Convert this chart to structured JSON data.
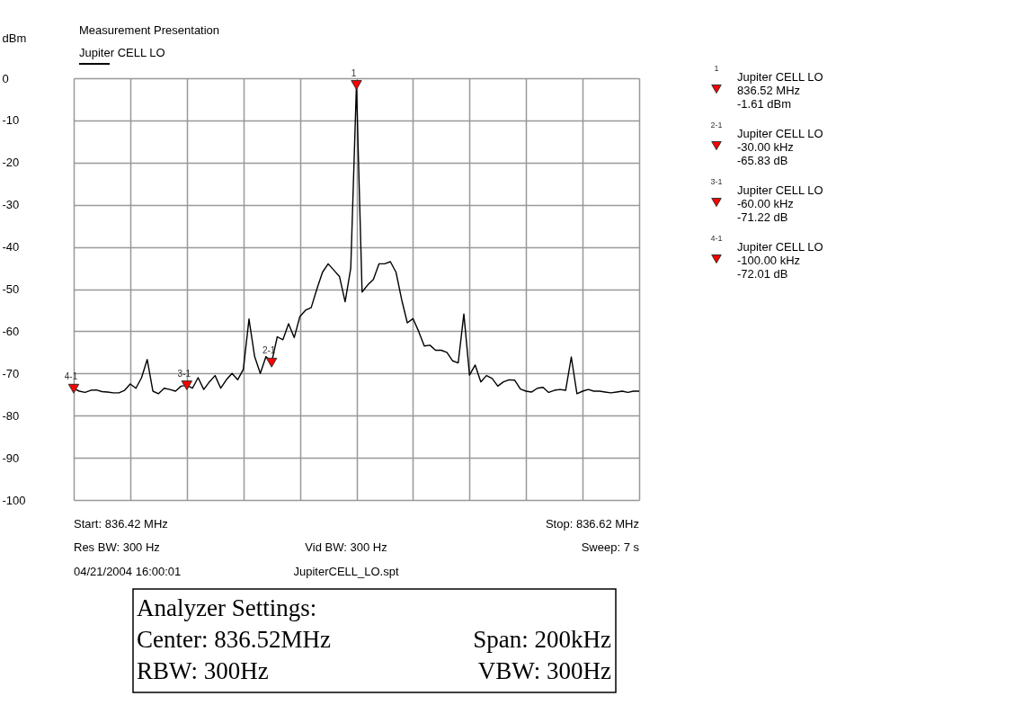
{
  "chart_data": {
    "type": "line",
    "title": "Measurement Presentation",
    "ylabel": "dBm",
    "categories": [
      null,
      null,
      null,
      null,
      null,
      null,
      null,
      null,
      null,
      null,
      null,
      null,
      null,
      null,
      null,
      null,
      null,
      null,
      null,
      null,
      null,
      null,
      null,
      null,
      null,
      null,
      null,
      null,
      null,
      null,
      null,
      null,
      null,
      null,
      null,
      null,
      null,
      null,
      null,
      null,
      null,
      null,
      null,
      null,
      null,
      null,
      null,
      null,
      null,
      null,
      null,
      null,
      null,
      null,
      null,
      null,
      null,
      null,
      null,
      null,
      null,
      null,
      null,
      null,
      null,
      null,
      null,
      null,
      null,
      null,
      null,
      null,
      null,
      null,
      null,
      null,
      null,
      null,
      null,
      null,
      null,
      null,
      null,
      null,
      null,
      null,
      null,
      null,
      null,
      null,
      null,
      null,
      null,
      null,
      null,
      null,
      null,
      null,
      null,
      null,
      null
    ],
    "ylim": [
      -100,
      0
    ],
    "yticks": [
      0,
      -10,
      -20,
      -30,
      -40,
      -50,
      -60,
      -70,
      -80,
      -90,
      -100
    ],
    "grid": true,
    "tick_labels": "y",
    "legend": "top left",
    "line_style": "solid",
    "marker": "none",
    "series": [
      {
        "name": "Jupiter CELL LO",
        "color": "#000000",
        "values": [
          -73.6,
          -74.2,
          -74.5,
          -74,
          -73.9,
          -74.3,
          -74.4,
          -74.6,
          -74.6,
          -74,
          -72.5,
          -73.5,
          -71,
          -66.7,
          -74.2,
          -74.8,
          -73.5,
          -73.8,
          -74.2,
          -73,
          -72.8,
          -73.5,
          -71,
          -73.8,
          -72,
          -70.5,
          -73.5,
          -71.5,
          -70,
          -71.5,
          -69,
          -57.1,
          -66,
          -70,
          -66,
          -67.4,
          -61.3,
          -62,
          -58.2,
          -61.5,
          -56.5,
          -55,
          -54.4,
          -50,
          -46,
          -44,
          -45.5,
          -47,
          -53,
          -45,
          -1.61,
          -50.7,
          -49,
          -47.7,
          -44,
          -44,
          -43.5,
          -46,
          -52.5,
          -58,
          -57,
          -60,
          -63.5,
          -63.3,
          -64.5,
          -64.5,
          -65,
          -67,
          -67.5,
          -55.9,
          -70.4,
          -68,
          -72,
          -70.5,
          -71.2,
          -73,
          -72,
          -71.5,
          -71.6,
          -73.7,
          -74.2,
          -74.4,
          -73.5,
          -73.3,
          -74.5,
          -74,
          -73.8,
          -74,
          -66.1,
          -74.8,
          -74.2,
          -73.8,
          -74.2,
          -74.2,
          -74.4,
          -74.6,
          -74.4,
          -74.2,
          -74.5,
          -74.2,
          -74.2
        ]
      },
      {
        "type": "scatter",
        "name": "1",
        "marker": "triangle",
        "color": "#ff0000",
        "values": [
          null,
          null,
          null,
          null,
          null,
          null,
          null,
          null,
          null,
          null,
          null,
          null,
          null,
          null,
          null,
          null,
          null,
          null,
          null,
          null,
          null,
          null,
          null,
          null,
          null,
          null,
          null,
          null,
          null,
          null,
          null,
          null,
          null,
          null,
          null,
          null,
          null,
          null,
          null,
          null,
          null,
          null,
          null,
          null,
          null,
          null,
          null,
          null,
          null,
          null,
          -1.61,
          null,
          null,
          null,
          null,
          null,
          null,
          null,
          null,
          null,
          null,
          null,
          null,
          null,
          null,
          null,
          null,
          null,
          null,
          null,
          null,
          null,
          null,
          null,
          null,
          null,
          null,
          null,
          null,
          null,
          null,
          null,
          null,
          null,
          null,
          null,
          null,
          null,
          null,
          null,
          null,
          null,
          null,
          null,
          null,
          null,
          null,
          null,
          null,
          null,
          null
        ]
      },
      {
        "type": "scatter",
        "name": "2-1",
        "marker": "triangle",
        "color": "#ff0000",
        "values": [
          null,
          null,
          null,
          null,
          null,
          null,
          null,
          null,
          null,
          null,
          null,
          null,
          null,
          null,
          null,
          null,
          null,
          null,
          null,
          null,
          null,
          null,
          null,
          null,
          null,
          null,
          null,
          null,
          null,
          null,
          null,
          null,
          null,
          null,
          null,
          -67.44,
          null,
          null,
          null,
          null,
          null,
          null,
          null,
          null,
          null,
          null,
          null,
          null,
          null,
          null,
          null,
          null,
          null,
          null,
          null,
          null,
          null,
          null,
          null,
          null,
          null,
          null,
          null,
          null,
          null,
          null,
          null,
          null,
          null,
          null,
          null,
          null,
          null,
          null,
          null,
          null,
          null,
          null,
          null,
          null,
          null,
          null,
          null,
          null,
          null,
          null,
          null,
          null,
          null,
          null,
          null,
          null,
          null,
          null,
          null,
          null,
          null,
          null,
          null,
          null,
          null
        ]
      },
      {
        "type": "scatter",
        "name": "3-1",
        "marker": "triangle",
        "color": "#ff0000",
        "values": [
          null,
          null,
          null,
          null,
          null,
          null,
          null,
          null,
          null,
          null,
          null,
          null,
          null,
          null,
          null,
          null,
          null,
          null,
          null,
          null,
          -72.83,
          null,
          null,
          null,
          null,
          null,
          null,
          null,
          null,
          null,
          null,
          null,
          null,
          null,
          null,
          null,
          null,
          null,
          null,
          null,
          null,
          null,
          null,
          null,
          null,
          null,
          null,
          null,
          null,
          null,
          null,
          null,
          null,
          null,
          null,
          null,
          null,
          null,
          null,
          null,
          null,
          null,
          null,
          null,
          null,
          null,
          null,
          null,
          null,
          null,
          null,
          null,
          null,
          null,
          null,
          null,
          null,
          null,
          null,
          null,
          null,
          null,
          null,
          null,
          null,
          null,
          null,
          null,
          null,
          null,
          null,
          null,
          null,
          null,
          null,
          null,
          null,
          null,
          null,
          null,
          null
        ]
      },
      {
        "type": "scatter",
        "name": "4-1",
        "marker": "triangle",
        "color": "#ff0000",
        "values": [
          -73.62,
          null,
          null,
          null,
          null,
          null,
          null,
          null,
          null,
          null,
          null,
          null,
          null,
          null,
          null,
          null,
          null,
          null,
          null,
          null,
          null,
          null,
          null,
          null,
          null,
          null,
          null,
          null,
          null,
          null,
          null,
          null,
          null,
          null,
          null,
          null,
          null,
          null,
          null,
          null,
          null,
          null,
          null,
          null,
          null,
          null,
          null,
          null,
          null,
          null,
          null,
          null,
          null,
          null,
          null,
          null,
          null,
          null,
          null,
          null,
          null,
          null,
          null,
          null,
          null,
          null,
          null,
          null,
          null,
          null,
          null,
          null,
          null,
          null,
          null,
          null,
          null,
          null,
          null,
          null,
          null,
          null,
          null,
          null,
          null,
          null,
          null,
          null,
          null,
          null,
          null,
          null,
          null,
          null,
          null,
          null,
          null,
          null,
          null,
          null,
          null
        ]
      }
    ],
    "annotations": [
      "Jupiter CELL LO",
      "836.52 MHz",
      "-1.61 dBm",
      "Jupiter CELL LO",
      "-30.00 kHz",
      "-65.83 dB",
      "Jupiter CELL LO",
      "-60.00 kHz",
      "-71.22 dB",
      "Jupiter CELL LO",
      "-100.00 kHz",
      "-72.01 dB",
      "Start: 836.42 MHz",
      "Stop: 836.62 MHz",
      "Res BW: 300 Hz",
      "Vid BW: 300 Hz",
      "Sweep: 7 s",
      "04/21/2004 16:00:01",
      "JupiterCELL_LO.spt",
      "Analyzer Settings:",
      "Center: 836.52MHz",
      "Span: 200kHz",
      "RBW: 300Hz",
      "VBW: 300Hz"
    ]
  }
}
